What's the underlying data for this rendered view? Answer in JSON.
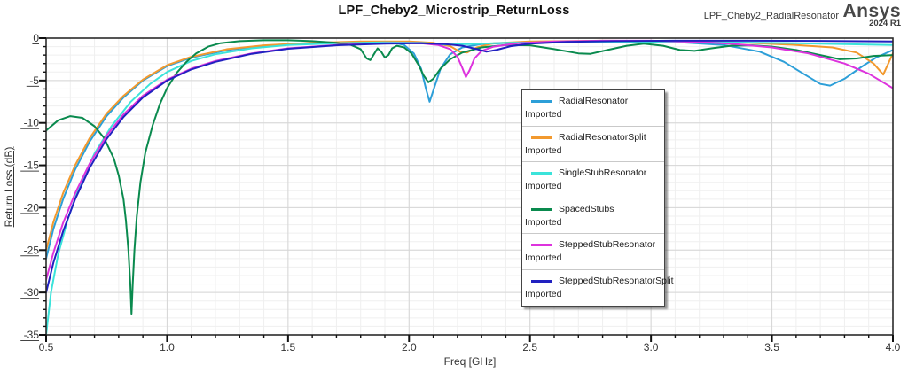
{
  "header": {
    "title": "LPF_Cheby2_Microstrip_ReturnLoss",
    "design_name": "LPF_Cheby2_RadialResonator",
    "brand": "Ansys",
    "brand_version": "2024 R1"
  },
  "chart_data": {
    "type": "line",
    "title": "LPF_Cheby2_Microstrip_ReturnLoss",
    "xlabel": "Freq [GHz]",
    "ylabel": "Return Loss (dB)",
    "xlim": [
      0.5,
      4.0
    ],
    "ylim": [
      -35,
      0
    ],
    "x_major_ticks": [
      0.5,
      1.0,
      1.5,
      2.0,
      2.5,
      3.0,
      3.5,
      4.0
    ],
    "x_minor_step": 0.1,
    "y_major_ticks": [
      0,
      -5,
      -10,
      -15,
      -20,
      -25,
      -30,
      -35
    ],
    "y_minor_step": 1,
    "grid": true,
    "legend_position": "overlay-center",
    "legend_subtitle": "Imported",
    "series": [
      {
        "name": "RadialResonator",
        "subtitle": "Imported",
        "color": "#2D9FD8",
        "points": [
          [
            0.5,
            -26
          ],
          [
            0.53,
            -22.5
          ],
          [
            0.57,
            -19
          ],
          [
            0.62,
            -15.5
          ],
          [
            0.68,
            -12.2
          ],
          [
            0.75,
            -9.2
          ],
          [
            0.82,
            -7.0
          ],
          [
            0.9,
            -5.0
          ],
          [
            1.0,
            -3.3
          ],
          [
            1.1,
            -2.3
          ],
          [
            1.25,
            -1.4
          ],
          [
            1.4,
            -0.9
          ],
          [
            1.6,
            -0.6
          ],
          [
            1.8,
            -0.45
          ],
          [
            1.92,
            -0.45
          ],
          [
            1.98,
            -0.8
          ],
          [
            2.02,
            -1.8
          ],
          [
            2.05,
            -3.6
          ],
          [
            2.07,
            -6.0
          ],
          [
            2.085,
            -7.5
          ],
          [
            2.1,
            -6.2
          ],
          [
            2.13,
            -3.6
          ],
          [
            2.17,
            -1.9
          ],
          [
            2.22,
            -1.1
          ],
          [
            2.3,
            -0.7
          ],
          [
            2.5,
            -0.45
          ],
          [
            2.8,
            -0.35
          ],
          [
            3.1,
            -0.45
          ],
          [
            3.3,
            -0.8
          ],
          [
            3.45,
            -1.6
          ],
          [
            3.55,
            -2.8
          ],
          [
            3.63,
            -4.2
          ],
          [
            3.7,
            -5.4
          ],
          [
            3.74,
            -5.6
          ],
          [
            3.8,
            -4.8
          ],
          [
            3.87,
            -3.4
          ],
          [
            3.93,
            -2.3
          ],
          [
            4.0,
            -1.4
          ]
        ]
      },
      {
        "name": "RadialResonatorSplit",
        "subtitle": "Imported",
        "color": "#F2992E",
        "points": [
          [
            0.5,
            -25
          ],
          [
            0.53,
            -21.7
          ],
          [
            0.57,
            -18.3
          ],
          [
            0.62,
            -15.0
          ],
          [
            0.68,
            -11.8
          ],
          [
            0.75,
            -8.9
          ],
          [
            0.82,
            -6.8
          ],
          [
            0.9,
            -4.9
          ],
          [
            1.0,
            -3.2
          ],
          [
            1.1,
            -2.2
          ],
          [
            1.25,
            -1.3
          ],
          [
            1.4,
            -0.85
          ],
          [
            1.6,
            -0.55
          ],
          [
            1.8,
            -0.4
          ],
          [
            2.0,
            -0.4
          ],
          [
            2.1,
            -0.55
          ],
          [
            2.17,
            -0.95
          ],
          [
            2.21,
            -1.6
          ],
          [
            2.24,
            -1.7
          ],
          [
            2.28,
            -1.1
          ],
          [
            2.35,
            -0.6
          ],
          [
            2.5,
            -0.4
          ],
          [
            2.8,
            -0.3
          ],
          [
            3.1,
            -0.35
          ],
          [
            3.4,
            -0.55
          ],
          [
            3.6,
            -0.8
          ],
          [
            3.75,
            -1.1
          ],
          [
            3.85,
            -1.7
          ],
          [
            3.92,
            -3.0
          ],
          [
            3.96,
            -4.3
          ],
          [
            4.0,
            -1.8
          ]
        ]
      },
      {
        "name": "SingleStubResonator",
        "subtitle": "Imported",
        "color": "#3BE3DA",
        "points": [
          [
            0.5,
            -35
          ],
          [
            0.52,
            -30
          ],
          [
            0.55,
            -25.5
          ],
          [
            0.59,
            -21.3
          ],
          [
            0.64,
            -17.3
          ],
          [
            0.7,
            -13.6
          ],
          [
            0.77,
            -10.4
          ],
          [
            0.85,
            -7.5
          ],
          [
            0.93,
            -5.4
          ],
          [
            1.0,
            -4.0
          ],
          [
            1.1,
            -2.7
          ],
          [
            1.2,
            -1.9
          ],
          [
            1.35,
            -1.2
          ],
          [
            1.5,
            -0.8
          ],
          [
            1.7,
            -0.6
          ],
          [
            1.9,
            -0.5
          ],
          [
            2.05,
            -0.55
          ],
          [
            2.15,
            -0.75
          ],
          [
            2.25,
            -0.7
          ],
          [
            2.4,
            -0.55
          ],
          [
            2.7,
            -0.45
          ],
          [
            3.0,
            -0.45
          ],
          [
            3.3,
            -0.5
          ],
          [
            3.6,
            -0.6
          ],
          [
            3.8,
            -0.7
          ],
          [
            4.0,
            -0.8
          ]
        ]
      },
      {
        "name": "SpacedStubs",
        "subtitle": "Imported",
        "color": "#0A8A4E",
        "points": [
          [
            0.5,
            -10.9
          ],
          [
            0.55,
            -9.7
          ],
          [
            0.6,
            -9.2
          ],
          [
            0.65,
            -9.4
          ],
          [
            0.7,
            -10.4
          ],
          [
            0.74,
            -11.8
          ],
          [
            0.78,
            -14.2
          ],
          [
            0.8,
            -16.2
          ],
          [
            0.82,
            -19
          ],
          [
            0.83,
            -21.5
          ],
          [
            0.84,
            -25
          ],
          [
            0.848,
            -29
          ],
          [
            0.853,
            -32.5
          ],
          [
            0.858,
            -29
          ],
          [
            0.865,
            -25
          ],
          [
            0.875,
            -21
          ],
          [
            0.89,
            -17
          ],
          [
            0.91,
            -13.5
          ],
          [
            0.94,
            -10.3
          ],
          [
            0.97,
            -7.8
          ],
          [
            1.0,
            -5.9
          ],
          [
            1.04,
            -4.1
          ],
          [
            1.08,
            -2.8
          ],
          [
            1.12,
            -1.8
          ],
          [
            1.17,
            -1.0
          ],
          [
            1.22,
            -0.6
          ],
          [
            1.3,
            -0.35
          ],
          [
            1.4,
            -0.25
          ],
          [
            1.5,
            -0.25
          ],
          [
            1.6,
            -0.35
          ],
          [
            1.7,
            -0.55
          ],
          [
            1.76,
            -0.8
          ],
          [
            1.8,
            -1.3
          ],
          [
            1.825,
            -2.4
          ],
          [
            1.84,
            -2.6
          ],
          [
            1.855,
            -1.9
          ],
          [
            1.87,
            -1.2
          ],
          [
            1.885,
            -1.6
          ],
          [
            1.9,
            -2.3
          ],
          [
            1.915,
            -2.0
          ],
          [
            1.93,
            -1.2
          ],
          [
            1.95,
            -0.9
          ],
          [
            1.98,
            -1.1
          ],
          [
            2.01,
            -1.8
          ],
          [
            2.04,
            -3.2
          ],
          [
            2.06,
            -4.4
          ],
          [
            2.08,
            -5.2
          ],
          [
            2.1,
            -4.8
          ],
          [
            2.13,
            -3.6
          ],
          [
            2.17,
            -2.5
          ],
          [
            2.22,
            -1.7
          ],
          [
            2.3,
            -1.1
          ],
          [
            2.4,
            -0.8
          ],
          [
            2.5,
            -0.85
          ],
          [
            2.6,
            -1.3
          ],
          [
            2.7,
            -1.8
          ],
          [
            2.75,
            -1.85
          ],
          [
            2.82,
            -1.4
          ],
          [
            2.9,
            -0.9
          ],
          [
            2.97,
            -0.65
          ],
          [
            3.05,
            -0.9
          ],
          [
            3.12,
            -1.4
          ],
          [
            3.18,
            -1.5
          ],
          [
            3.25,
            -1.2
          ],
          [
            3.33,
            -0.9
          ],
          [
            3.42,
            -0.85
          ],
          [
            3.5,
            -1.0
          ],
          [
            3.6,
            -1.4
          ],
          [
            3.7,
            -2.0
          ],
          [
            3.78,
            -2.5
          ],
          [
            3.85,
            -2.4
          ],
          [
            3.92,
            -2.1
          ],
          [
            4.0,
            -2.0
          ]
        ]
      },
      {
        "name": "SteppedStubResonator",
        "subtitle": "Imported",
        "color": "#DD33DD",
        "points": [
          [
            0.5,
            -28.5
          ],
          [
            0.53,
            -25.3
          ],
          [
            0.57,
            -21.8
          ],
          [
            0.62,
            -18.3
          ],
          [
            0.68,
            -14.8
          ],
          [
            0.75,
            -11.5
          ],
          [
            0.82,
            -9.0
          ],
          [
            0.9,
            -6.8
          ],
          [
            1.0,
            -4.9
          ],
          [
            1.1,
            -3.6
          ],
          [
            1.2,
            -2.7
          ],
          [
            1.35,
            -1.8
          ],
          [
            1.5,
            -1.2
          ],
          [
            1.7,
            -0.8
          ],
          [
            1.9,
            -0.6
          ],
          [
            2.05,
            -0.6
          ],
          [
            2.12,
            -0.8
          ],
          [
            2.17,
            -1.3
          ],
          [
            2.2,
            -2.2
          ],
          [
            2.22,
            -3.5
          ],
          [
            2.235,
            -4.6
          ],
          [
            2.25,
            -3.8
          ],
          [
            2.27,
            -2.4
          ],
          [
            2.3,
            -1.5
          ],
          [
            2.35,
            -1.0
          ],
          [
            2.45,
            -0.6
          ],
          [
            2.6,
            -0.4
          ],
          [
            2.8,
            -0.3
          ],
          [
            3.0,
            -0.3
          ],
          [
            3.2,
            -0.45
          ],
          [
            3.35,
            -0.7
          ],
          [
            3.5,
            -1.1
          ],
          [
            3.65,
            -1.8
          ],
          [
            3.8,
            -3.0
          ],
          [
            3.9,
            -4.2
          ],
          [
            4.0,
            -5.9
          ]
        ]
      },
      {
        "name": "SteppedStubResonatorSplit",
        "subtitle": "Imported",
        "color": "#2121C0",
        "points": [
          [
            0.5,
            -30
          ],
          [
            0.53,
            -26.5
          ],
          [
            0.57,
            -22.8
          ],
          [
            0.62,
            -19
          ],
          [
            0.68,
            -15.3
          ],
          [
            0.75,
            -11.9
          ],
          [
            0.82,
            -9.3
          ],
          [
            0.9,
            -7.0
          ],
          [
            1.0,
            -5.0
          ],
          [
            1.1,
            -3.7
          ],
          [
            1.2,
            -2.8
          ],
          [
            1.35,
            -1.85
          ],
          [
            1.5,
            -1.25
          ],
          [
            1.7,
            -0.85
          ],
          [
            1.9,
            -0.65
          ],
          [
            2.05,
            -0.6
          ],
          [
            2.15,
            -0.7
          ],
          [
            2.22,
            -0.9
          ],
          [
            2.28,
            -1.3
          ],
          [
            2.32,
            -1.6
          ],
          [
            2.36,
            -1.4
          ],
          [
            2.42,
            -0.95
          ],
          [
            2.5,
            -0.65
          ],
          [
            2.65,
            -0.45
          ],
          [
            2.85,
            -0.35
          ],
          [
            3.1,
            -0.3
          ],
          [
            3.4,
            -0.3
          ],
          [
            3.7,
            -0.32
          ],
          [
            4.0,
            -0.4
          ]
        ]
      }
    ]
  }
}
